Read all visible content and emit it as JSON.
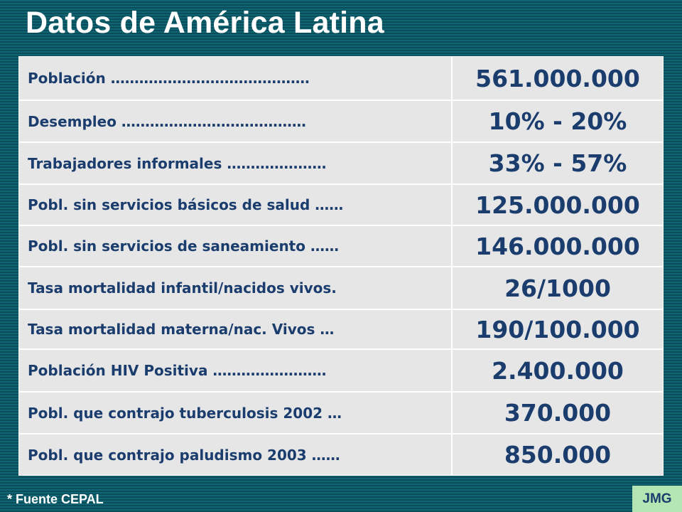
{
  "title": "Datos de América Latina",
  "rows": [
    {
      "label": "Población ……………………………………",
      "value": "561.000.000"
    },
    {
      "label": "Desempleo …………………………………",
      "value": "10% - 20%"
    },
    {
      "label": "Trabajadores informales …………………",
      "value": "33% - 57%"
    },
    {
      "label": "Pobl. sin servicios básicos de salud ……",
      "value": "125.000.000"
    },
    {
      "label": "Pobl. sin servicios de saneamiento ……",
      "value": "146.000.000"
    },
    {
      "label": "Tasa mortalidad infantil/nacidos vivos.",
      "value": "26/1000"
    },
    {
      "label": "Tasa mortalidad materna/nac. Vivos …",
      "value": "190/100.000"
    },
    {
      "label": "Población HIV Positiva ……………………",
      "value": "2.400.000"
    },
    {
      "label": "Pobl. que contrajo tuberculosis 2002 …",
      "value": "370.000"
    },
    {
      "label": "Pobl. que contrajo paludismo 2003 ……",
      "value": "850.000"
    }
  ],
  "footer": {
    "source": "* Fuente CEPAL",
    "badge": "JMG"
  }
}
